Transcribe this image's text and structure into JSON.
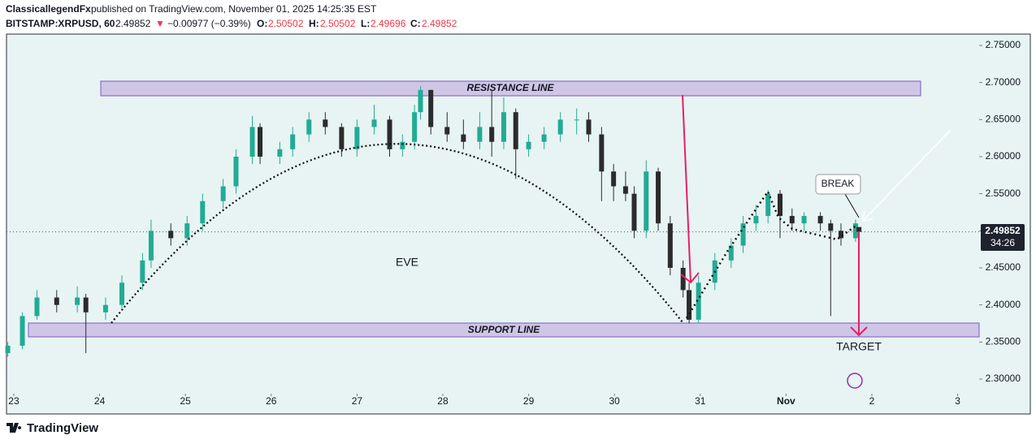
{
  "header": {
    "author": "ClassicallegendFx",
    "published": "published on TradingView.com, November 01, 2025 14:25:35 EST",
    "symbol": "BITSTAMP:XRPUSD, 60",
    "change": "−0.00977 (−0.39%)",
    "down_arrow": "▼",
    "o_label": "O:",
    "h_label": "H:",
    "l_label": "L:",
    "c_label": "C:"
  },
  "chart_data": {
    "type": "candlestick",
    "x": [
      -0.07,
      0.1,
      0.27,
      0.5,
      0.74,
      0.84,
      1.07,
      1.26,
      1.5,
      1.6,
      1.83,
      2.02,
      2.2,
      2.44,
      2.59,
      2.78,
      2.87,
      3.1,
      3.25,
      3.44,
      3.63,
      3.82,
      4.0,
      4.2,
      4.38,
      4.53,
      4.67,
      4.74,
      4.86,
      5.05,
      5.24,
      5.43,
      5.57,
      5.71,
      5.85,
      6.0,
      6.18,
      6.37,
      6.56,
      6.7,
      6.85,
      6.99,
      7.13,
      7.23,
      7.37,
      7.51,
      7.65,
      7.8,
      7.87,
      7.98,
      8.17,
      8.36,
      8.5,
      8.65,
      8.79,
      8.93,
      9.07,
      9.21,
      9.4,
      9.52,
      9.64,
      9.81,
      9.85
    ],
    "open": [
      2.335,
      2.345,
      2.385,
      2.41,
      2.4,
      2.41,
      2.39,
      2.4,
      2.43,
      2.46,
      2.5,
      2.49,
      2.51,
      2.54,
      2.56,
      2.6,
      2.64,
      2.6,
      2.61,
      2.63,
      2.65,
      2.64,
      2.61,
      2.64,
      2.65,
      2.61,
      2.62,
      2.66,
      2.69,
      2.64,
      2.63,
      2.62,
      2.64,
      2.62,
      2.66,
      2.61,
      2.62,
      2.63,
      2.65,
      2.65,
      2.63,
      2.58,
      2.56,
      2.55,
      2.5,
      2.58,
      2.51,
      2.45,
      2.42,
      2.38,
      2.43,
      2.46,
      2.48,
      2.51,
      2.52,
      2.55,
      2.52,
      2.51,
      2.52,
      2.51,
      2.5,
      2.49,
      2.50502
    ],
    "high": [
      2.35,
      2.39,
      2.42,
      2.42,
      2.425,
      2.415,
      2.41,
      2.44,
      2.47,
      2.515,
      2.51,
      2.52,
      2.55,
      2.57,
      2.61,
      2.655,
      2.645,
      2.62,
      2.64,
      2.66,
      2.66,
      2.645,
      2.65,
      2.67,
      2.655,
      2.63,
      2.67,
      2.695,
      2.69,
      2.66,
      2.65,
      2.66,
      2.69,
      2.68,
      2.665,
      2.63,
      2.64,
      2.66,
      2.665,
      2.66,
      2.64,
      2.59,
      2.58,
      2.56,
      2.595,
      2.585,
      2.52,
      2.46,
      2.43,
      2.44,
      2.47,
      2.49,
      2.52,
      2.535,
      2.555,
      2.555,
      2.53,
      2.525,
      2.525,
      2.515,
      2.51,
      2.515,
      2.50502
    ],
    "low": [
      2.33,
      2.34,
      2.38,
      2.39,
      2.39,
      2.335,
      2.38,
      2.395,
      2.42,
      2.45,
      2.48,
      2.48,
      2.5,
      2.53,
      2.55,
      2.59,
      2.59,
      2.59,
      2.6,
      2.62,
      2.63,
      2.6,
      2.6,
      2.63,
      2.6,
      2.6,
      2.61,
      2.65,
      2.63,
      2.62,
      2.61,
      2.61,
      2.6,
      2.61,
      2.57,
      2.6,
      2.61,
      2.62,
      2.63,
      2.62,
      2.54,
      2.54,
      2.54,
      2.49,
      2.49,
      2.5,
      2.44,
      2.41,
      2.375,
      2.375,
      2.42,
      2.45,
      2.47,
      2.5,
      2.51,
      2.49,
      2.5,
      2.5,
      2.5,
      2.385,
      2.48,
      2.485,
      2.49696
    ],
    "close": [
      2.345,
      2.385,
      2.41,
      2.4,
      2.41,
      2.39,
      2.4,
      2.43,
      2.46,
      2.5,
      2.49,
      2.51,
      2.54,
      2.56,
      2.6,
      2.64,
      2.6,
      2.61,
      2.63,
      2.65,
      2.64,
      2.61,
      2.64,
      2.65,
      2.61,
      2.62,
      2.66,
      2.69,
      2.64,
      2.63,
      2.62,
      2.64,
      2.62,
      2.66,
      2.61,
      2.62,
      2.63,
      2.65,
      2.65,
      2.63,
      2.58,
      2.56,
      2.55,
      2.5,
      2.58,
      2.51,
      2.45,
      2.42,
      2.38,
      2.43,
      2.46,
      2.48,
      2.51,
      2.52,
      2.55,
      2.52,
      2.51,
      2.52,
      2.51,
      2.5,
      2.49,
      2.51,
      2.49852
    ],
    "up_color": "#22ab94",
    "down_color": "#2b2b2b",
    "xlim": [
      -0.085,
      11.25
    ],
    "xticks": [
      {
        "value": 0,
        "label": "23"
      },
      {
        "value": 1,
        "label": "24"
      },
      {
        "value": 2,
        "label": "25"
      },
      {
        "value": 3,
        "label": "26"
      },
      {
        "value": 4,
        "label": "27"
      },
      {
        "value": 5,
        "label": "28"
      },
      {
        "value": 6,
        "label": "29"
      },
      {
        "value": 7,
        "label": "30"
      },
      {
        "value": 8,
        "label": "31"
      },
      {
        "value": 9,
        "label": "Nov"
      },
      {
        "value": 10,
        "label": "2"
      },
      {
        "value": 11,
        "label": "3"
      }
    ],
    "ylim": [
      2.2803,
      2.7653
    ],
    "yticks": [
      {
        "value": 2.3,
        "label": "2.30000"
      },
      {
        "value": 2.35,
        "label": "2.35000"
      },
      {
        "value": 2.4,
        "label": "2.40000"
      },
      {
        "value": 2.45,
        "label": "2.45000"
      },
      {
        "value": 2.5,
        "label": "2.50000"
      },
      {
        "value": 2.55,
        "label": "2.55000"
      },
      {
        "value": 2.6,
        "label": "2.60000"
      },
      {
        "value": 2.65,
        "label": "2.65000"
      },
      {
        "value": 2.7,
        "label": "2.70000"
      },
      {
        "value": 2.75,
        "label": "2.75000"
      }
    ],
    "countdown": "34:26",
    "annotations": {
      "resistance": "RESISTANCE LINE",
      "support": "SUPPORT LINE",
      "pattern": "EVE",
      "break": "BREAK",
      "target": "TARGET"
    }
  },
  "footer": {
    "brand": "TradingView"
  }
}
